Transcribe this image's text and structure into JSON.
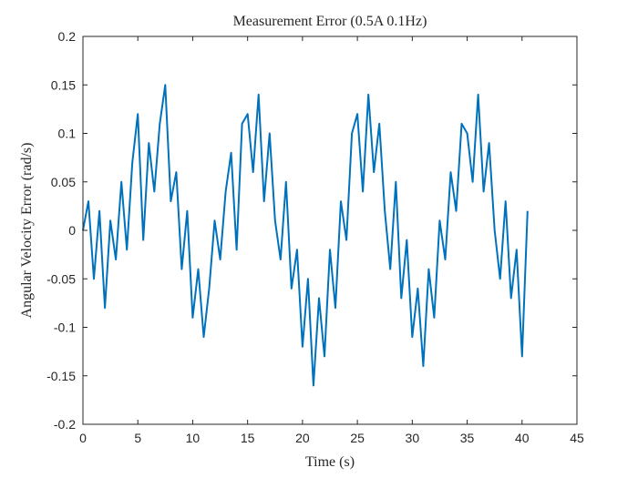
{
  "chart_data": {
    "type": "line",
    "title": "Measurement Error (0.5A 0.1Hz)",
    "xlabel": "Time (s)",
    "ylabel": "Angular Velocity Error (rad/s)",
    "xlim": [
      0,
      45
    ],
    "ylim": [
      -0.2,
      0.2
    ],
    "xticks": [
      0,
      5,
      10,
      15,
      20,
      25,
      30,
      35,
      40,
      45
    ],
    "xtick_labels": [
      "0",
      "5",
      "10",
      "15",
      "20",
      "25",
      "30",
      "35",
      "40",
      "45"
    ],
    "yticks": [
      -0.2,
      -0.15,
      -0.1,
      -0.05,
      0,
      0.05,
      0.1,
      0.15,
      0.2
    ],
    "ytick_labels": [
      "-0.2",
      "-0.15",
      "-0.1",
      "-0.05",
      "0",
      "0.05",
      "0.1",
      "0.15",
      "0.2"
    ],
    "grid": false,
    "series_color": "#0072BD",
    "series": [
      {
        "x": [
          0,
          0.5,
          1,
          1.5,
          2,
          2.5,
          3,
          3.5,
          4,
          4.5,
          5,
          5.5,
          6,
          6.5,
          7,
          7.5,
          8,
          8.5,
          9,
          9.5,
          10,
          10.5,
          11,
          11.5,
          12,
          12.5,
          13,
          13.5,
          14,
          14.5,
          15,
          15.5,
          16,
          16.5,
          17,
          17.5,
          18,
          18.5,
          19,
          19.5,
          20,
          20.5,
          21,
          21.5,
          22,
          22.5,
          23,
          23.5,
          24,
          24.5,
          25,
          25.5,
          26,
          26.5,
          27,
          27.5,
          28,
          28.5,
          29,
          29.5,
          30,
          30.5,
          31,
          31.5,
          32,
          32.5,
          33,
          33.5,
          34,
          34.5,
          35,
          35.5,
          36,
          36.5,
          37,
          37.5,
          38,
          38.5,
          39,
          39.5,
          40,
          40.5
        ],
        "y": [
          0,
          0.03,
          -0.05,
          0.02,
          -0.08,
          0.01,
          -0.03,
          0.05,
          -0.02,
          0.07,
          0.12,
          -0.01,
          0.09,
          0.04,
          0.11,
          0.15,
          0.03,
          0.06,
          -0.04,
          0.02,
          -0.09,
          -0.04,
          -0.11,
          -0.06,
          0.01,
          -0.03,
          0.04,
          0.08,
          -0.02,
          0.11,
          0.12,
          0.06,
          0.14,
          0.03,
          0.1,
          0.01,
          -0.03,
          0.05,
          -0.06,
          -0.02,
          -0.12,
          -0.05,
          -0.16,
          -0.07,
          -0.13,
          -0.02,
          -0.08,
          0.03,
          -0.01,
          0.1,
          0.12,
          0.04,
          0.14,
          0.06,
          0.11,
          0.02,
          -0.04,
          0.05,
          -0.07,
          -0.01,
          -0.11,
          -0.06,
          -0.14,
          -0.04,
          -0.09,
          0.01,
          -0.03,
          0.06,
          0.02,
          0.11,
          0.1,
          0.05,
          0.14,
          0.04,
          0.09,
          0,
          -0.05,
          0.03,
          -0.07,
          -0.02,
          -0.13,
          0.02
        ]
      }
    ]
  }
}
